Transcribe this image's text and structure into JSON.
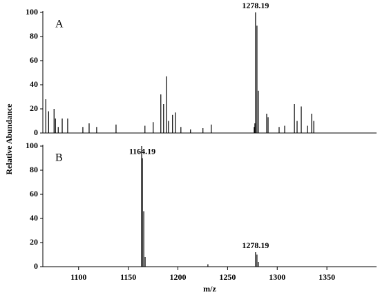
{
  "chart_data": [
    {
      "type": "bar",
      "label": "A",
      "ylabel": "Relative Abundance",
      "x": [
        1067,
        1069.8,
        1075.3,
        1076.7,
        1079.5,
        1083.5,
        1089,
        1104.3,
        1110.6,
        1118.2,
        1137.7,
        1166.8,
        1175.1,
        1182.8,
        1185.6,
        1188.4,
        1190.5,
        1194.6,
        1197.4,
        1203,
        1212.7,
        1225.2,
        1233.6,
        1276.8,
        1277.5,
        1278.19,
        1279.6,
        1281,
        1289.4,
        1290.8,
        1301.9,
        1307.5,
        1317.3,
        1320,
        1324.2,
        1330.5,
        1334.7,
        1336.8
      ],
      "values": [
        28,
        18,
        20,
        12,
        5,
        12,
        12,
        5,
        8,
        5,
        7,
        6,
        9,
        32,
        24,
        47,
        10,
        15,
        17,
        5,
        3,
        4,
        7,
        5,
        8,
        100,
        89,
        35,
        16,
        13,
        5,
        6,
        24,
        10,
        22,
        6,
        16,
        10
      ],
      "annotations": [
        {
          "text": "1278.19",
          "x": 1278.19
        }
      ],
      "xlim": [
        1064,
        1400
      ],
      "ylim": [
        0,
        100
      ],
      "yticks": [
        0,
        20,
        40,
        60,
        80,
        100
      ],
      "color": "#000000"
    },
    {
      "type": "bar",
      "label": "B",
      "xlabel": "m/z",
      "x": [
        1163.5,
        1164.19,
        1165.6,
        1167,
        1230.2,
        1278.19,
        1279.6,
        1281
      ],
      "values": [
        100,
        90,
        46,
        8,
        2,
        12,
        10,
        4
      ],
      "annotations": [
        {
          "text": "1164.19",
          "x": 1164.19
        },
        {
          "text": "1278.19",
          "x": 1278.19
        }
      ],
      "xlim": [
        1064,
        1400
      ],
      "ylim": [
        0,
        100
      ],
      "yticks": [
        0,
        20,
        40,
        60,
        80,
        100
      ],
      "xticks": [
        1100,
        1150,
        1200,
        1250,
        1300,
        1350
      ],
      "color": "#000000"
    }
  ]
}
